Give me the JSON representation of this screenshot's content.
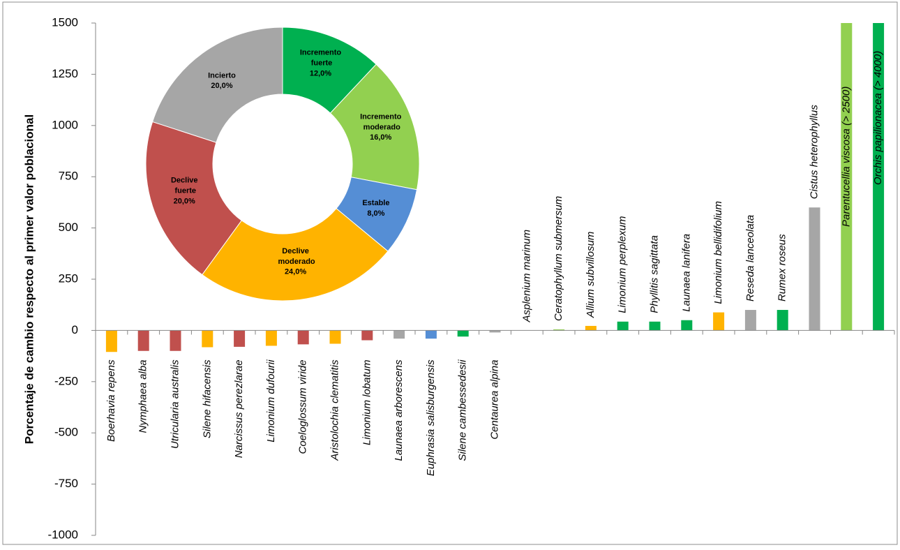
{
  "chart_data": [
    {
      "type": "bar",
      "ylabel": "Porcentaje de cambio respecto al primer valor poblacional",
      "categories": [
        "Boerhavia repens",
        "Nymphaea alba",
        "Utricularia australis",
        "Silene hifacensis",
        "Narcissus perezlarae",
        "Limonium dufourii",
        "Coeloglossum viride",
        "Aristolochia clematitis",
        "Limonium lobatum",
        "Launaea arborescens",
        "Euphrasia salisburgensis",
        "Silene cambessedesii",
        "Centaurea alpina",
        "Asplenium marinum",
        "Ceratophyllum submersum",
        "Allium subvillosum",
        "Limonium perplexum",
        "Phyllitis sagittata",
        "Launaea lanifera",
        "Limonium bellidifolium",
        "Reseda lanceolata",
        "Rumex roseus",
        "Cistus heterophyllus",
        "Parentucellia viscosa (> 2500)",
        "Orchis papilionacea (> 4000)"
      ],
      "values": [
        -105,
        -100,
        -100,
        -82,
        -80,
        -75,
        -68,
        -65,
        -48,
        -40,
        -40,
        -30,
        -10,
        0,
        5,
        22,
        43,
        43,
        50,
        88,
        100,
        100,
        600,
        1500,
        1500
      ],
      "colors": [
        "#ffb300",
        "#c0504d",
        "#c0504d",
        "#ffb300",
        "#c0504d",
        "#ffb300",
        "#c0504d",
        "#ffb300",
        "#c0504d",
        "#a6a6a6",
        "#558ed5",
        "#00b050",
        "#a6a6a6",
        "#a6a6a6",
        "#92d050",
        "#ffb300",
        "#00b050",
        "#00b050",
        "#00b050",
        "#ffb300",
        "#a6a6a6",
        "#00b050",
        "#a6a6a6",
        "#92d050",
        "#00b050"
      ],
      "ylim": [
        -1000,
        1500
      ],
      "yticks": [
        -1000,
        -750,
        -500,
        -250,
        0,
        250,
        500,
        750,
        1000,
        1250,
        1500
      ]
    },
    {
      "type": "pie",
      "categories": [
        "Incremento fuerte",
        "Incremento moderado",
        "Estable",
        "Declive moderado",
        "Declive fuerte",
        "Incierto"
      ],
      "values": [
        12,
        16,
        8,
        24,
        20,
        20
      ],
      "value_labels": [
        "12,0%",
        "16,0%",
        "8,0%",
        "24,0%",
        "20,0%",
        "20,0%"
      ],
      "colors": [
        "#00b050",
        "#92d050",
        "#558ed5",
        "#ffb300",
        "#c0504d",
        "#a6a6a6"
      ]
    }
  ]
}
